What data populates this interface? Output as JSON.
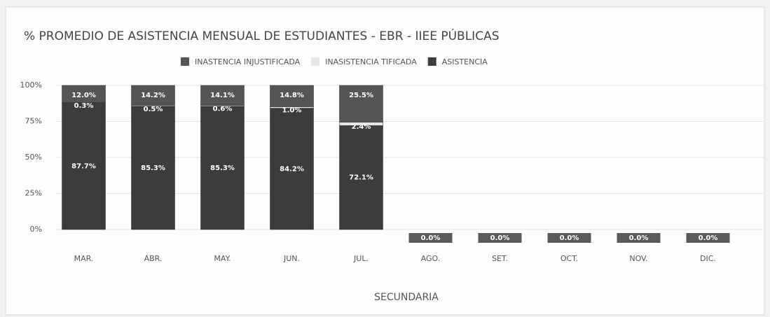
{
  "chart_data": {
    "type": "stacked_bar",
    "title": "% PROMEDIO DE ASISTENCIA MENSUAL DE ESTUDIANTES - EBR - IIEE PÚBLICAS",
    "x_label": "SECUNDARIA",
    "categories": [
      "MAR.",
      "ABR.",
      "MAY.",
      "JUN.",
      "JUL.",
      "AGO.",
      "SET.",
      "OCT.",
      "NOV.",
      "DIC."
    ],
    "series": [
      {
        "name": "ASISTENCIA",
        "color": "#3c3c3c",
        "values": [
          87.7,
          85.3,
          85.3,
          84.2,
          72.1,
          0.0,
          0.0,
          0.0,
          0.0,
          0.0
        ],
        "value_labels": [
          "87.7%",
          "85.3%",
          "85.3%",
          "84.2%",
          "72.1%",
          "0.0%",
          "0.0%",
          "0.0%",
          "0.0%",
          "0.0%"
        ]
      },
      {
        "name": "INASISTENCIA TIFICADA",
        "color": "#e6e6e6",
        "values": [
          0.3,
          0.5,
          0.6,
          1.0,
          2.4,
          null,
          null,
          null,
          null,
          null
        ],
        "value_labels": [
          "0.3%",
          "0.5%",
          "0.6%",
          "1.0%",
          "2.4%",
          null,
          null,
          null,
          null,
          null
        ]
      },
      {
        "name": "INASTENCIA INJUSTIFICADA",
        "color": "#555555",
        "values": [
          12.0,
          14.2,
          14.1,
          14.8,
          25.5,
          null,
          null,
          null,
          null,
          null
        ],
        "value_labels": [
          "12.0%",
          "14.2%",
          "14.1%",
          "14.8%",
          "25.5%",
          null,
          null,
          null,
          null,
          null
        ]
      }
    ],
    "legend_order": [
      2,
      1,
      0
    ],
    "ylim": [
      0,
      100
    ],
    "yticks": [
      {
        "value": 0,
        "label": "0%"
      },
      {
        "value": 25,
        "label": "25%"
      },
      {
        "value": 50,
        "label": "50%"
      },
      {
        "value": 75,
        "label": "75%"
      },
      {
        "value": 100,
        "label": "100%"
      }
    ],
    "grid": true
  }
}
